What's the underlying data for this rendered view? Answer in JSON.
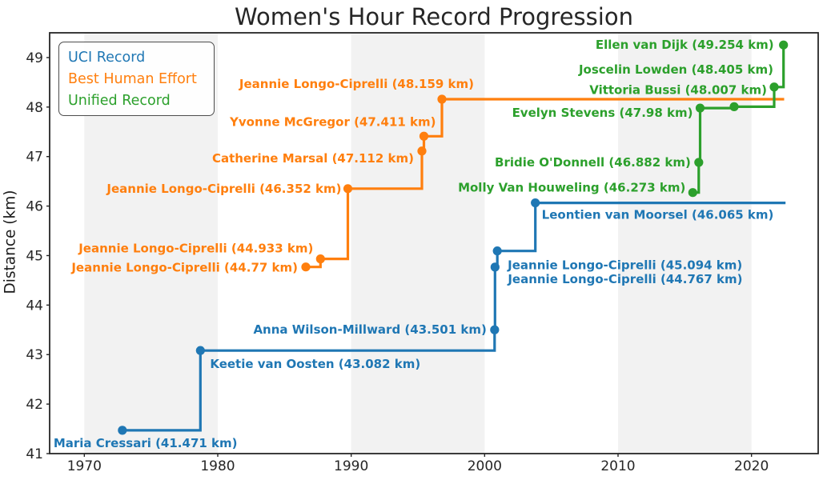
{
  "figure": {
    "title": "Women's Hour Record Progression",
    "ylabel": "Distance (km)"
  },
  "legend": {
    "items": [
      {
        "label": "UCI Record",
        "color": "#1f77b4"
      },
      {
        "label": "Best Human Effort",
        "color": "#ff7f0e"
      },
      {
        "label": "Unified Record",
        "color": "#2ca02c"
      }
    ]
  },
  "chart_data": {
    "type": "line",
    "subtype": "step-after",
    "title": "Women's Hour Record Progression",
    "xlabel": "",
    "ylabel": "Distance (km)",
    "xlim": [
      1967.4,
      2025.0
    ],
    "ylim": [
      41,
      49.5
    ],
    "xticks": [
      1970,
      1980,
      1990,
      2000,
      2010,
      2020
    ],
    "yticks": [
      41,
      42,
      43,
      44,
      45,
      46,
      47,
      48,
      49
    ],
    "grid": false,
    "legend_position": "upper left",
    "shaded_decades": [
      [
        1970,
        1980
      ],
      [
        1990,
        2000
      ],
      [
        2010,
        2020
      ]
    ],
    "band_color": "#f2f2f2",
    "axis_color": "#262626",
    "series": [
      {
        "name": "UCI Record",
        "color": "#1f77b4",
        "extend_to": 2022.55,
        "points": [
          {
            "rider": "Maria Cressari",
            "km": 41.471,
            "year": 1972.85,
            "label": "Maria Cressari (41.471 km)",
            "ha": "start",
            "dx": -86,
            "dy": 16
          },
          {
            "rider": "Keetie van Oosten",
            "km": 43.082,
            "year": 1978.7,
            "label": "Keetie van Oosten (43.082 km)",
            "ha": "start",
            "dx": 12,
            "dy": 17
          },
          {
            "rider": "Anna Wilson-Millward",
            "km": 43.501,
            "year": 2000.75,
            "label": "Anna Wilson-Millward (43.501 km)",
            "ha": "end",
            "dx": -10,
            "dy": 0
          },
          {
            "rider": "Jeannie Longo-Ciprelli",
            "km": 44.767,
            "year": 2000.78,
            "label": "Jeannie Longo-Ciprelli (44.767 km)",
            "ha": "start",
            "dx": 16,
            "dy": 15
          },
          {
            "rider": "Jeannie Longo-Ciprelli",
            "km": 45.094,
            "year": 2000.95,
            "label": "Jeannie Longo-Ciprelli (45.094 km)",
            "ha": "start",
            "dx": 13,
            "dy": 18
          },
          {
            "rider": "Leontien van Moorsel",
            "km": 46.065,
            "year": 2003.8,
            "label": "Leontien van Moorsel (46.065 km)",
            "ha": "start",
            "dx": 8,
            "dy": 15
          }
        ]
      },
      {
        "name": "Best Human Effort",
        "color": "#ff7f0e",
        "extend_to": 2022.45,
        "points": [
          {
            "rider": "Jeannie Longo-Ciprelli",
            "km": 44.77,
            "year": 1986.6,
            "label": "Jeannie Longo-Ciprelli (44.77 km)",
            "ha": "end",
            "dx": -10,
            "dy": 1
          },
          {
            "rider": "Jeannie Longo-Ciprelli",
            "km": 44.933,
            "year": 1987.7,
            "label": "Jeannie Longo-Ciprelli (44.933 km)",
            "ha": "end",
            "dx": -9,
            "dy": -13
          },
          {
            "rider": "Jeannie Longo-Ciprelli",
            "km": 46.352,
            "year": 1989.75,
            "label": "Jeannie Longo-Ciprelli (46.352 km)",
            "ha": "end",
            "dx": -8,
            "dy": 0
          },
          {
            "rider": "Catherine Marsal",
            "km": 47.112,
            "year": 1995.3,
            "label": "Catherine Marsal (47.112 km)",
            "ha": "end",
            "dx": -10,
            "dy": 9
          },
          {
            "rider": "Yvonne McGregor",
            "km": 47.411,
            "year": 1995.45,
            "label": "Yvonne McGregor (47.411 km)",
            "ha": "end",
            "dx": 15,
            "dy": -18
          },
          {
            "rider": "Jeannie Longo-Ciprelli",
            "km": 48.159,
            "year": 1996.8,
            "label": "Jeannie Longo-Ciprelli (48.159 km)",
            "ha": "end",
            "dx": 40,
            "dy": -19
          }
        ]
      },
      {
        "name": "Unified Record",
        "color": "#2ca02c",
        "extend_to": 2022.4,
        "points": [
          {
            "rider": "Molly Van Houweling",
            "km": 46.273,
            "year": 2015.6,
            "label": "Molly Van Houweling (46.273 km)",
            "ha": "end",
            "dx": -9,
            "dy": -6
          },
          {
            "rider": "Bridie O'Donnell",
            "km": 46.882,
            "year": 2016.05,
            "label": "Bridie O'Donnell (46.882 km)",
            "ha": "end",
            "dx": -10,
            "dy": 0
          },
          {
            "rider": "Evelyn Stevens",
            "km": 47.98,
            "year": 2016.15,
            "label": "Evelyn Stevens (47.98 km)",
            "ha": "end",
            "dx": -9,
            "dy": 6
          },
          {
            "rider": "Vittoria Bussi",
            "km": 48.007,
            "year": 2018.7,
            "label": "Vittoria Bussi (48.007 km)",
            "ha": "end",
            "dx": 41,
            "dy": -21
          },
          {
            "rider": "Joscelin Lowden",
            "km": 48.405,
            "year": 2021.7,
            "label": "Joscelin Lowden (48.405 km)",
            "ha": "end",
            "dx": -1,
            "dy": -22
          },
          {
            "rider": "Ellen van Dijk",
            "km": 49.254,
            "year": 2022.4,
            "label": "Ellen van Dijk (49.254 km)",
            "ha": "end",
            "dx": -12,
            "dy": 0
          }
        ]
      }
    ]
  }
}
